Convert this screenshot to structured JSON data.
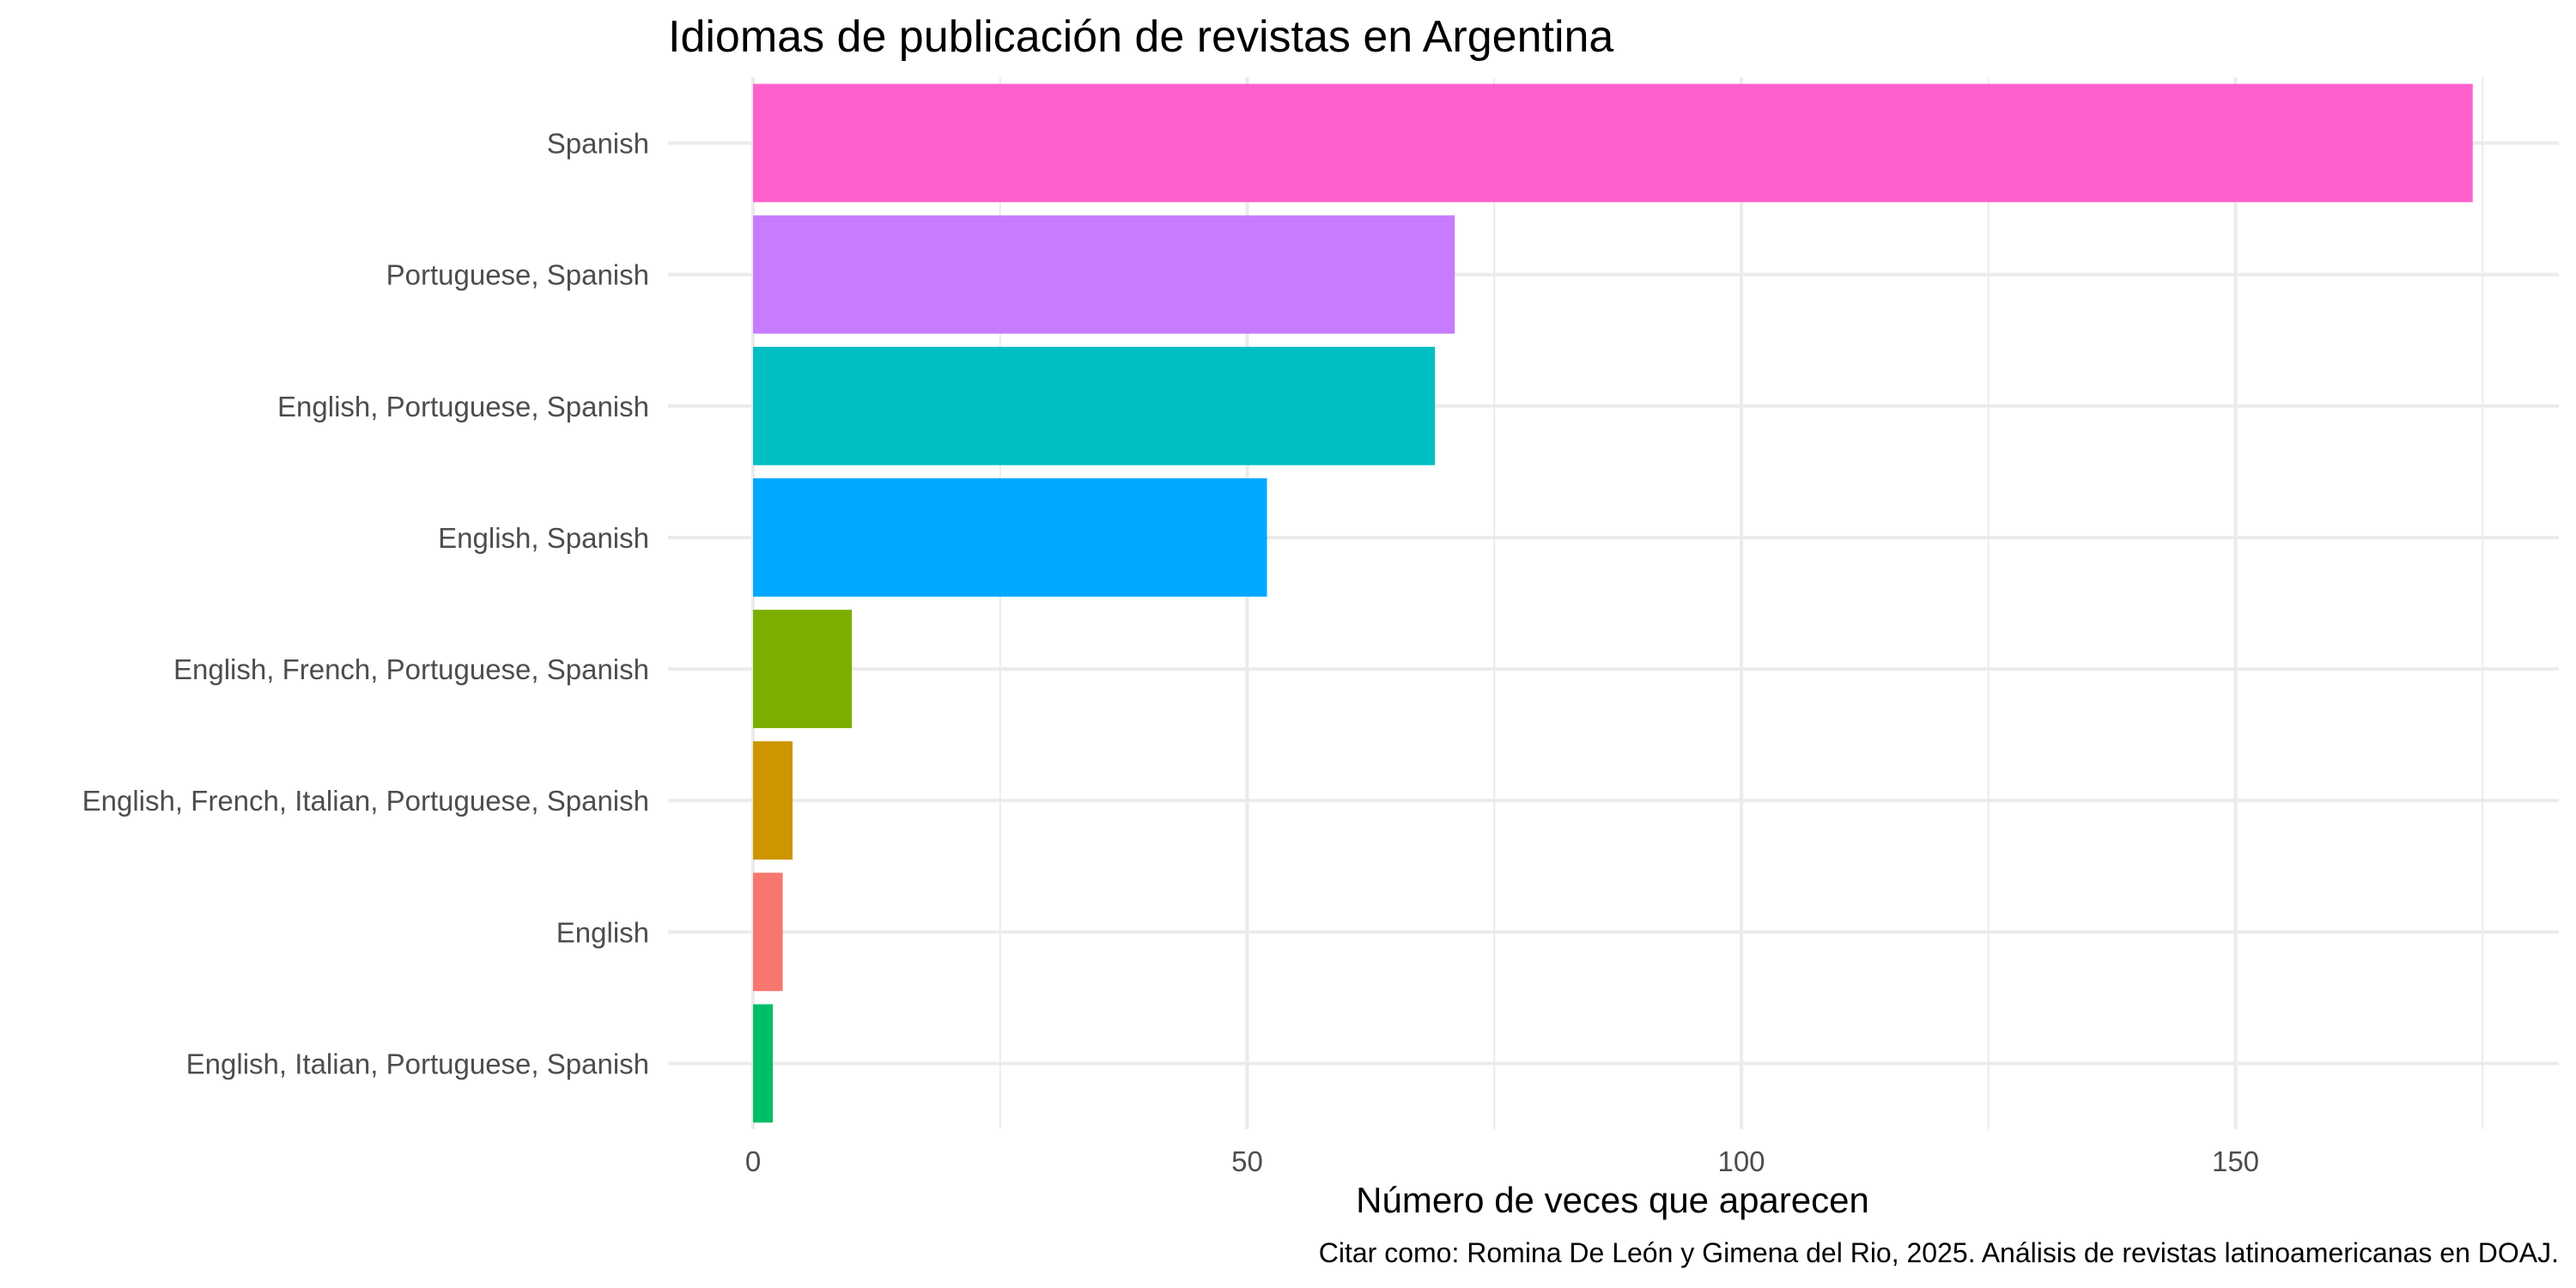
{
  "chart_data": {
    "type": "bar",
    "orientation": "horizontal",
    "title": "Idiomas de publicación de revistas en Argentina",
    "xlabel": "Número de veces que aparecen",
    "ylabel": "",
    "caption": "Citar como: Romina De León y Gimena del Rio, 2025. Análisis de revistas latinoamericanas en DOAJ.",
    "xlim": [
      0,
      175
    ],
    "x_ticks": [
      0,
      50,
      100,
      150
    ],
    "x_tick_labels": [
      "0",
      "50",
      "100",
      "150"
    ],
    "grid": true,
    "legend": "none",
    "categories": [
      "Spanish",
      "Portuguese, Spanish",
      "English, Portuguese, Spanish",
      "English, Spanish",
      "English, French, Portuguese, Spanish",
      "English, French, Italian, Portuguese, Spanish",
      "English",
      "English, Italian, Portuguese, Spanish"
    ],
    "values": [
      174,
      71,
      69,
      52,
      10,
      4,
      3,
      2
    ],
    "colors": [
      "#FF61CC",
      "#C77CFF",
      "#00BFC4",
      "#00A9FF",
      "#7CAE00",
      "#CD9600",
      "#F8766D",
      "#00BE67"
    ]
  }
}
